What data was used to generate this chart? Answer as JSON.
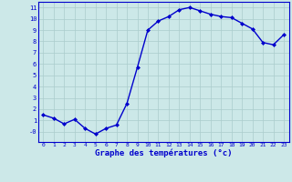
{
  "x": [
    0,
    1,
    2,
    3,
    4,
    5,
    6,
    7,
    8,
    9,
    10,
    11,
    12,
    13,
    14,
    15,
    16,
    17,
    18,
    19,
    20,
    21,
    22,
    23
  ],
  "y": [
    1.5,
    1.2,
    0.7,
    1.1,
    0.3,
    -0.2,
    0.3,
    0.6,
    2.5,
    5.7,
    9.0,
    9.8,
    10.2,
    10.8,
    11.0,
    10.7,
    10.4,
    10.2,
    10.1,
    9.6,
    9.1,
    7.9,
    7.7,
    8.6
  ],
  "line_color": "#0000cc",
  "marker": "D",
  "markersize": 2.0,
  "linewidth": 1.0,
  "xlabel": "Graphe des températures (°c)",
  "xlabel_fontsize": 6.5,
  "bg_color": "#cce8e8",
  "grid_color": "#aacccc",
  "tick_color": "#0000cc",
  "xlim": [
    -0.5,
    23.5
  ],
  "ylim": [
    -0.9,
    11.5
  ],
  "yticks": [
    0,
    1,
    2,
    3,
    4,
    5,
    6,
    7,
    8,
    9,
    10,
    11
  ],
  "ytick_labels": [
    "-0",
    "1",
    "2",
    "3",
    "4",
    "5",
    "6",
    "7",
    "8",
    "9",
    "10",
    "11"
  ],
  "xticks": [
    0,
    1,
    2,
    3,
    4,
    5,
    6,
    7,
    8,
    9,
    10,
    11,
    12,
    13,
    14,
    15,
    16,
    17,
    18,
    19,
    20,
    21,
    22,
    23
  ]
}
